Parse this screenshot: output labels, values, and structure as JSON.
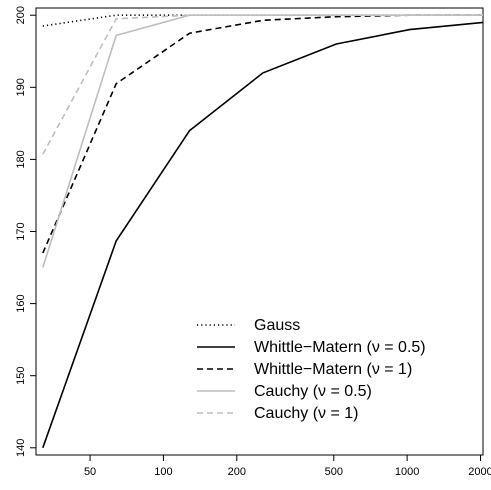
{
  "chart_data": {
    "type": "line",
    "x_scale": "log",
    "x_ticks": [
      50,
      100,
      200,
      500,
      1000,
      2000
    ],
    "x_tick_labels": [
      "50",
      "100",
      "200",
      "500",
      "1000",
      "2000"
    ],
    "xlim": [
      30,
      2048
    ],
    "y_ticks": [
      140,
      150,
      160,
      170,
      180,
      190,
      200
    ],
    "y_tick_labels": [
      "140",
      "150",
      "160",
      "170",
      "180",
      "190",
      "200"
    ],
    "ylim": [
      139,
      201
    ],
    "grid": false,
    "legend_position": "bottom-right",
    "x": [
      32,
      64,
      128,
      256,
      512,
      1024,
      2048
    ],
    "series": [
      {
        "name": "Gauss",
        "dash": "dotted",
        "color": "#000000",
        "values": [
          198.5,
          200,
          200,
          200,
          200,
          200,
          200
        ]
      },
      {
        "name": "Whittle−Matern (ν = 0.5)",
        "dash": "solid",
        "color": "#000000",
        "values": [
          140,
          168.7,
          184,
          192,
          196,
          198,
          199
        ]
      },
      {
        "name": "Whittle−Matern (ν = 1)",
        "dash": "dashed",
        "color": "#000000",
        "values": [
          167,
          190.5,
          197.5,
          199.3,
          199.8,
          200,
          200
        ]
      },
      {
        "name": "Cauchy (ν = 0.5)",
        "dash": "solid",
        "color": "#bebebe",
        "values": [
          165,
          197.2,
          200,
          200,
          200,
          200,
          200
        ]
      },
      {
        "name": "Cauchy (ν = 1)",
        "dash": "dashed",
        "color": "#bebebe",
        "values": [
          180.7,
          199.5,
          200,
          200,
          200,
          200,
          200
        ]
      }
    ]
  }
}
